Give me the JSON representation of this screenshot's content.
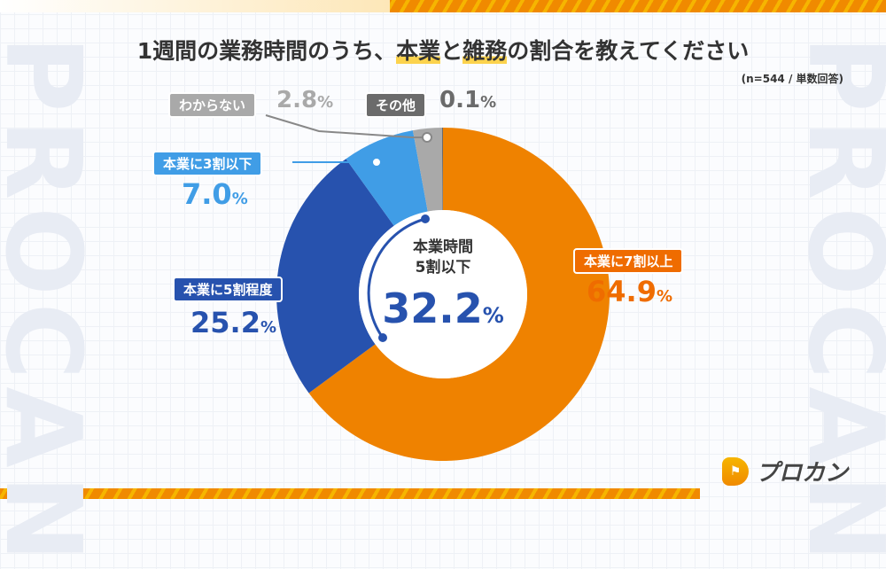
{
  "title": {
    "pre": "1週間の業務時間のうち、",
    "hl1": "本業",
    "mid": "と",
    "hl2": "雑務",
    "post": "の割合を教えてください"
  },
  "note": "(n=544 / 単数回答)",
  "watermark": "PROCAN",
  "brand": "プロカン",
  "center": {
    "line1": "本業時間",
    "line2": "5割以下",
    "value": "32.2",
    "unit": "%"
  },
  "chart_data": {
    "type": "pie",
    "donut": true,
    "categories": [
      "本業に7割以上",
      "本業に5割程度",
      "本業に3割以下",
      "わからない",
      "その他"
    ],
    "values": [
      64.9,
      25.2,
      7.0,
      2.8,
      0.1
    ],
    "value_labels": [
      "64.9",
      "25.2",
      "7.0",
      "2.8",
      "0.1"
    ],
    "unit": "%",
    "colors": [
      "#ef8200",
      "#2752ae",
      "#409de6",
      "#a9a9a9",
      "#6b6b6b"
    ]
  }
}
